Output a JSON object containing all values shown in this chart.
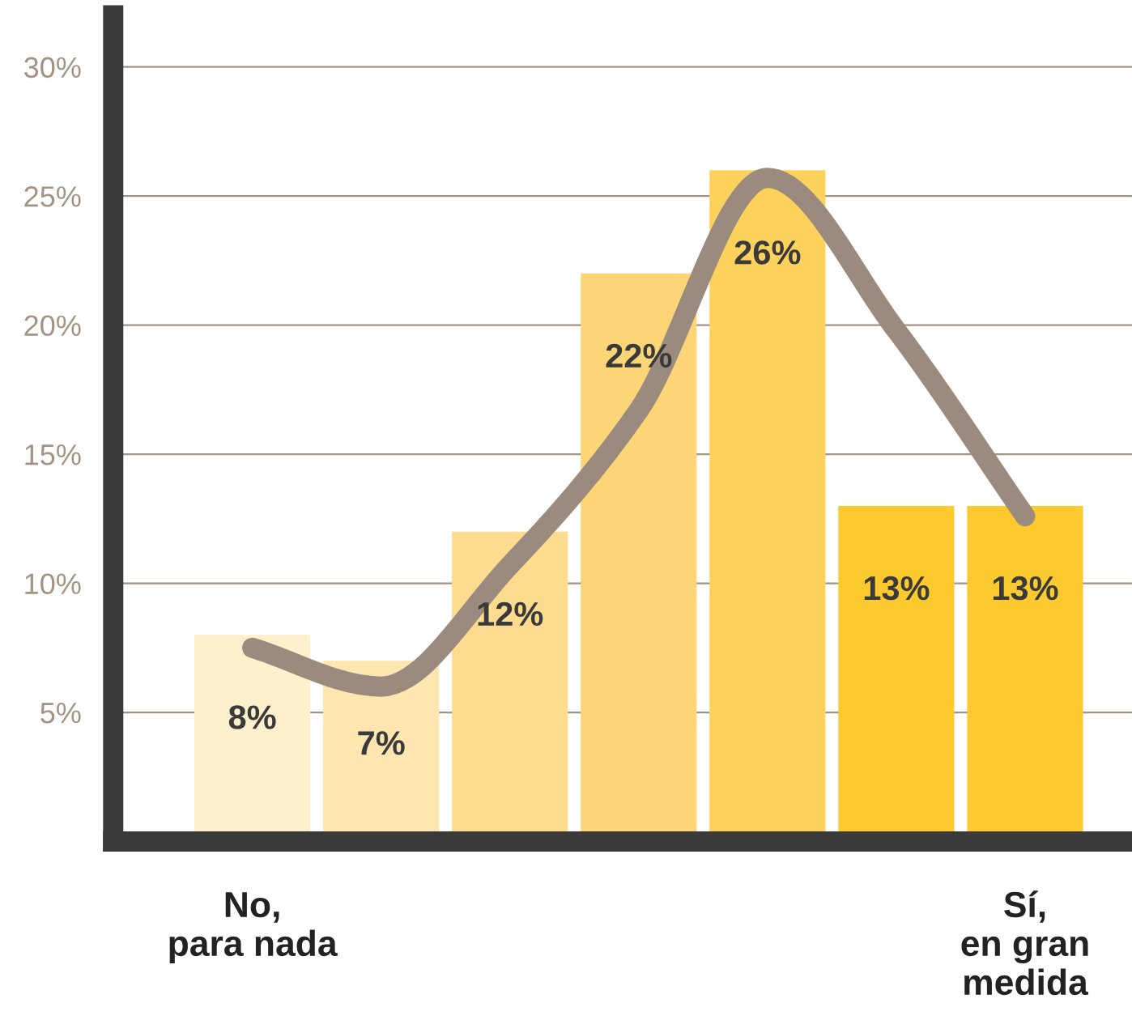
{
  "chart_data": {
    "type": "bar",
    "categories": [
      "No,\npara nada",
      null,
      null,
      null,
      null,
      null,
      "Sí,\nen gran\nmedida"
    ],
    "series": [
      {
        "values": [
          8,
          7,
          12,
          22,
          26,
          13,
          13
        ],
        "value_labels": [
          "8%",
          "7%",
          "12%",
          "22%",
          "26%",
          "13%",
          "13%"
        ],
        "colors": [
          "#fdf0cc",
          "#fde6b0",
          "#fddb8f",
          "#fcd676",
          "#fdd25c",
          "#fcc92e",
          "#fcc92e"
        ]
      },
      {
        "type": "line",
        "color": "#9b8b7e",
        "values": [
          7.5,
          6,
          10.7,
          16.7,
          25.7,
          19.8,
          12.6
        ]
      }
    ],
    "ylim": [
      0,
      32
    ],
    "yticks": [
      {
        "value": 5,
        "label": "5%"
      },
      {
        "value": 10,
        "label": "10%"
      },
      {
        "value": 15,
        "label": "15%"
      },
      {
        "value": 20,
        "label": "20%"
      },
      {
        "value": 25,
        "label": "25%"
      },
      {
        "value": 30,
        "label": "30%"
      }
    ],
    "grid": "y"
  }
}
